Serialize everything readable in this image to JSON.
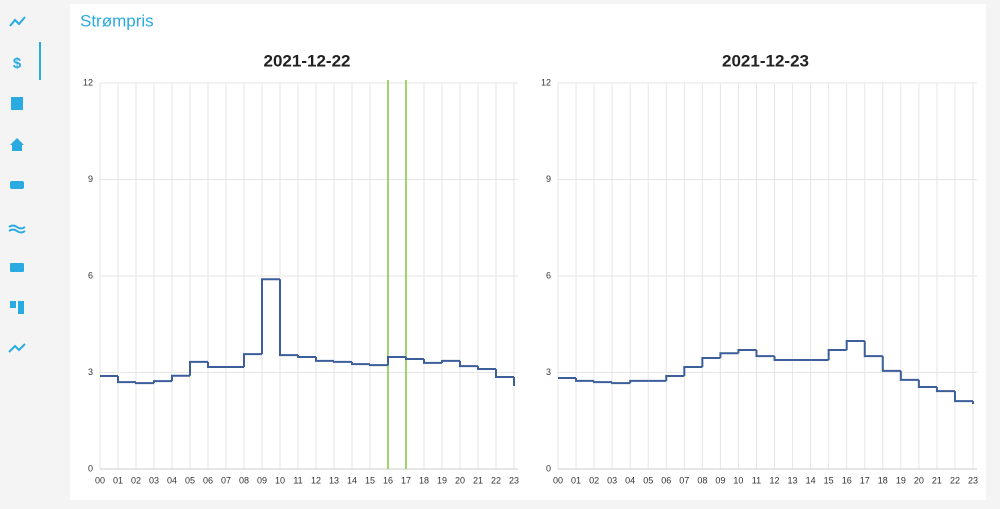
{
  "header": {
    "title": "Strømpris"
  },
  "chart_data": [
    {
      "type": "line",
      "step": true,
      "title": "2021-12-22",
      "color": "#3c5f9b",
      "categories": [
        "00",
        "01",
        "02",
        "03",
        "04",
        "05",
        "06",
        "07",
        "08",
        "09",
        "10",
        "11",
        "12",
        "13",
        "14",
        "15",
        "16",
        "17",
        "18",
        "19",
        "20",
        "21",
        "22",
        "23"
      ],
      "values": [
        2.89,
        2.7,
        2.67,
        2.73,
        2.9,
        3.33,
        3.17,
        3.17,
        3.57,
        5.9,
        3.54,
        3.48,
        3.36,
        3.33,
        3.26,
        3.23,
        3.48,
        3.42,
        3.3,
        3.36,
        3.2,
        3.11,
        2.86,
        2.58
      ],
      "ylim": [
        0,
        12
      ],
      "yticks": [
        0,
        3,
        6,
        9,
        12
      ],
      "grid": true,
      "highlight_x": [
        "16",
        "17"
      ],
      "highlight_color": "#7ec83a"
    },
    {
      "type": "line",
      "step": true,
      "title": "2021-12-23",
      "color": "#3c5f9b",
      "categories": [
        "00",
        "01",
        "02",
        "03",
        "04",
        "05",
        "06",
        "07",
        "08",
        "09",
        "10",
        "11",
        "12",
        "13",
        "14",
        "15",
        "16",
        "17",
        "18",
        "19",
        "20",
        "21",
        "22",
        "23"
      ],
      "values": [
        2.83,
        2.74,
        2.7,
        2.67,
        2.74,
        2.74,
        2.89,
        3.17,
        3.45,
        3.6,
        3.7,
        3.51,
        3.39,
        3.39,
        3.39,
        3.7,
        3.98,
        3.51,
        3.05,
        2.77,
        2.55,
        2.42,
        2.11,
        2.02
      ],
      "ylim": [
        0,
        12
      ],
      "yticks": [
        0,
        3,
        6,
        9,
        12
      ],
      "grid": true
    }
  ]
}
